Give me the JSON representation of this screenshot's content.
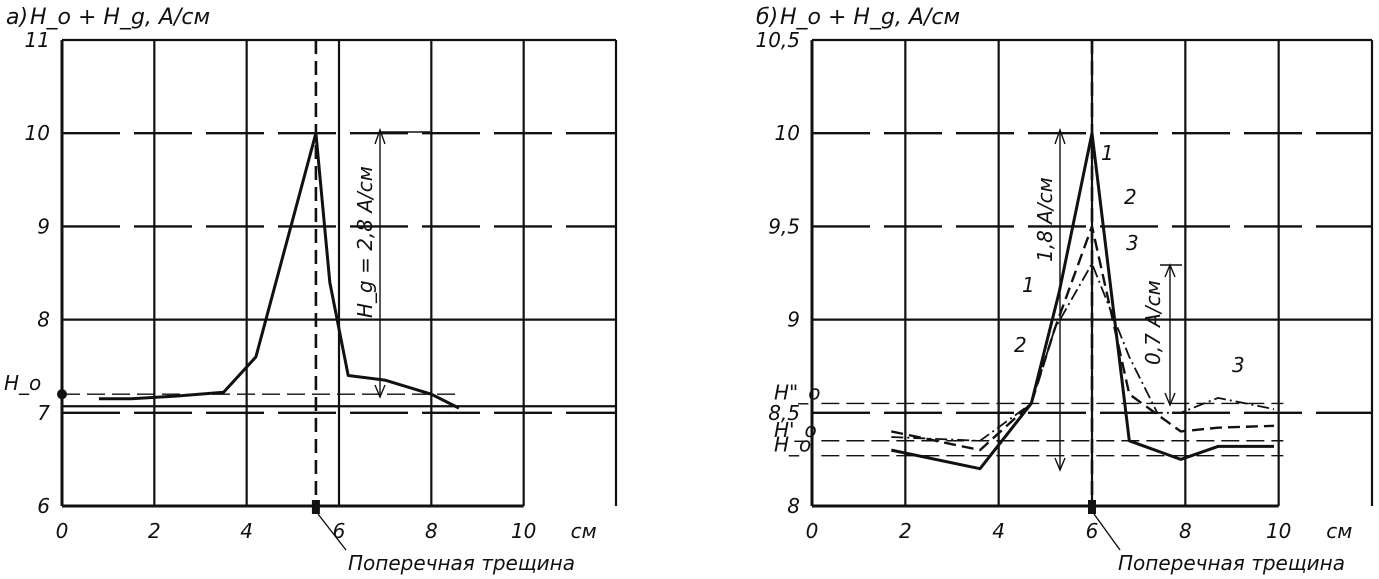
{
  "chart_data": [
    {
      "panel": "а",
      "type": "line",
      "title": "H_o + H_g, A/см",
      "xlabel": "см",
      "xlim": [
        0,
        12
      ],
      "ylim": [
        6,
        11
      ],
      "xticks": [
        0,
        2,
        4,
        6,
        8,
        10
      ],
      "xtick_labels": [
        "0",
        "2",
        "4",
        "6",
        "8",
        "10"
      ],
      "yticks": [
        6,
        7,
        8,
        9,
        10,
        11
      ],
      "ytick_labels": [
        "6",
        "7",
        "8",
        "9",
        "10",
        "11"
      ],
      "grid": true,
      "series": [
        {
          "x": [
            0.8,
            1.5,
            2.5,
            3.5,
            4.2,
            5.5,
            5.8,
            6.2,
            7.0,
            8.0,
            8.6
          ],
          "y": [
            7.15,
            7.15,
            7.18,
            7.22,
            7.6,
            10.0,
            8.4,
            7.4,
            7.35,
            7.2,
            7.05
          ]
        }
      ],
      "reference_lines": [
        {
          "label": "H_o",
          "y": 7.2
        }
      ],
      "annotations": {
        "amplitude_label": "H_g = 2,8 A/см",
        "amplitude_range": [
          7.2,
          10.0
        ],
        "crack_label": "Поперечная трещина",
        "crack_x": 5.5
      }
    },
    {
      "panel": "б",
      "type": "line",
      "title": "H_o + H_g, A/см",
      "xlabel": "см",
      "xlim": [
        0,
        12
      ],
      "ylim": [
        8,
        10.5
      ],
      "xticks": [
        0,
        2,
        4,
        6,
        8,
        10
      ],
      "xtick_labels": [
        "0",
        "2",
        "4",
        "6",
        "8",
        "10"
      ],
      "yticks": [
        8,
        8.5,
        9,
        9.5,
        10,
        10.5
      ],
      "ytick_labels": [
        "8",
        "8,5",
        "9",
        "9,5",
        "10",
        "10,5"
      ],
      "grid": true,
      "series": [
        {
          "name": "1",
          "x": [
            1.7,
            3.6,
            4.7,
            5.3,
            6.0,
            6.8,
            7.9,
            8.7,
            9.9
          ],
          "y": [
            8.3,
            8.2,
            8.55,
            9.15,
            10.0,
            8.35,
            8.25,
            8.32,
            8.32
          ]
        },
        {
          "name": "2",
          "x": [
            1.7,
            3.6,
            4.7,
            5.2,
            6.0,
            6.8,
            7.9,
            8.7,
            9.9
          ],
          "y": [
            8.4,
            8.3,
            8.55,
            8.95,
            9.5,
            8.6,
            8.4,
            8.42,
            8.43
          ]
        },
        {
          "name": "3",
          "x": [
            1.7,
            3.6,
            4.7,
            5.2,
            6.0,
            6.8,
            7.4,
            7.9,
            8.7,
            9.9
          ],
          "y": [
            8.37,
            8.35,
            8.55,
            8.95,
            9.3,
            8.8,
            8.5,
            8.5,
            8.58,
            8.52
          ]
        }
      ],
      "reference_lines": [
        {
          "label": "H\"_o",
          "y": 8.55
        },
        {
          "label": "H'_o",
          "y": 8.35
        },
        {
          "label": "H_o",
          "y": 8.27
        }
      ],
      "annotations": {
        "amplitude_label_1": "1,8 A/см",
        "amplitude_range_1": [
          8.27,
          10.0
        ],
        "amplitude_label_2": "0,7 A/см",
        "amplitude_range_2": [
          8.55,
          9.3
        ],
        "crack_label": "Поперечная трещина",
        "crack_x": 6.0
      }
    }
  ]
}
